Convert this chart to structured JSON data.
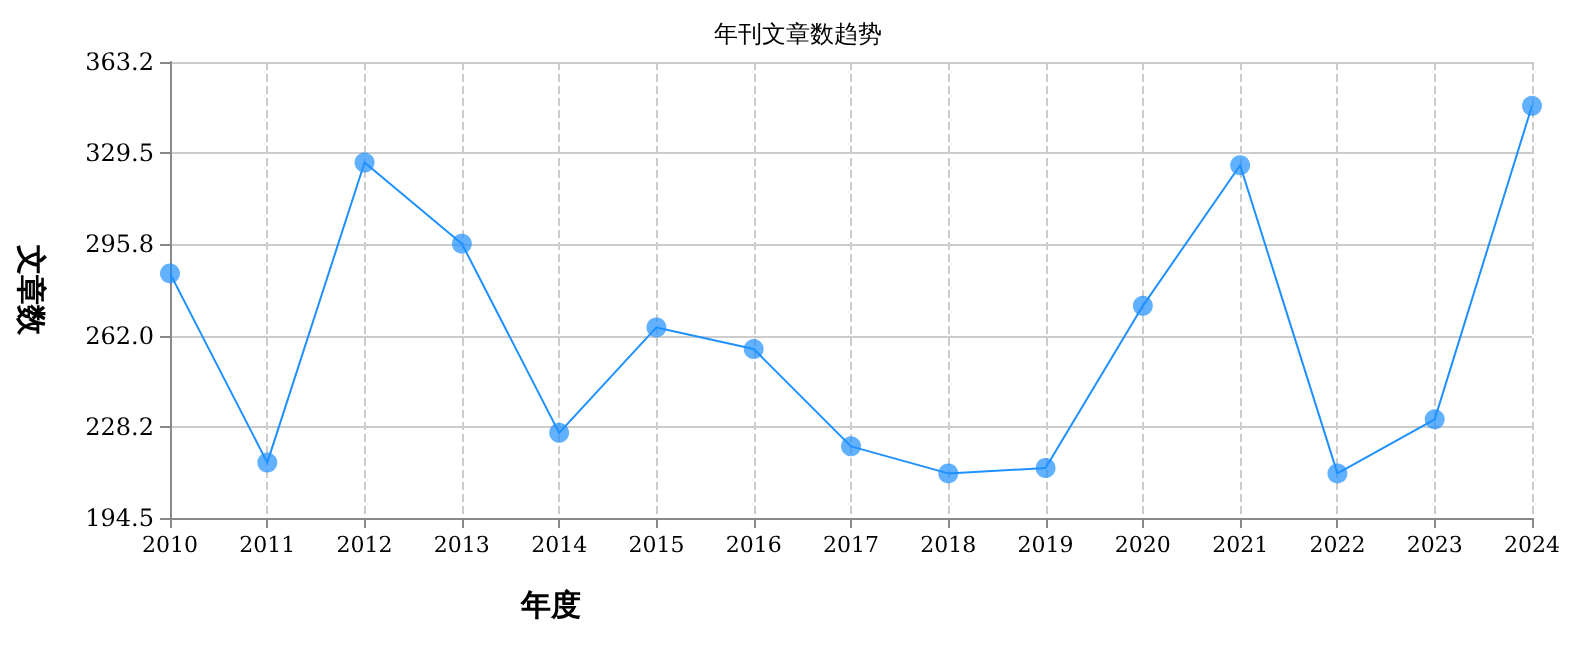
{
  "chart_data": {
    "type": "line",
    "title": "年刊文章数趋势",
    "xlabel": "年度",
    "ylabel": "文章数",
    "categories": [
      "2010",
      "2011",
      "2012",
      "2013",
      "2014",
      "2015",
      "2016",
      "2017",
      "2018",
      "2019",
      "2020",
      "2021",
      "2022",
      "2023",
      "2024"
    ],
    "series": [
      {
        "color": "#1e90ff",
        "values": [
          285,
          215,
          326,
          296,
          226,
          265,
          257,
          221,
          211,
          213,
          273,
          325,
          211,
          231,
          347
        ]
      }
    ],
    "ylim": [
      194.5,
      363.2
    ],
    "yticks": [
      194.5,
      228.2,
      {
        "value": 262,
        "label": "262.0"
      },
      295.8,
      329.5,
      363.2
    ],
    "grid": true,
    "marker": "circle",
    "line_style": "solid"
  }
}
